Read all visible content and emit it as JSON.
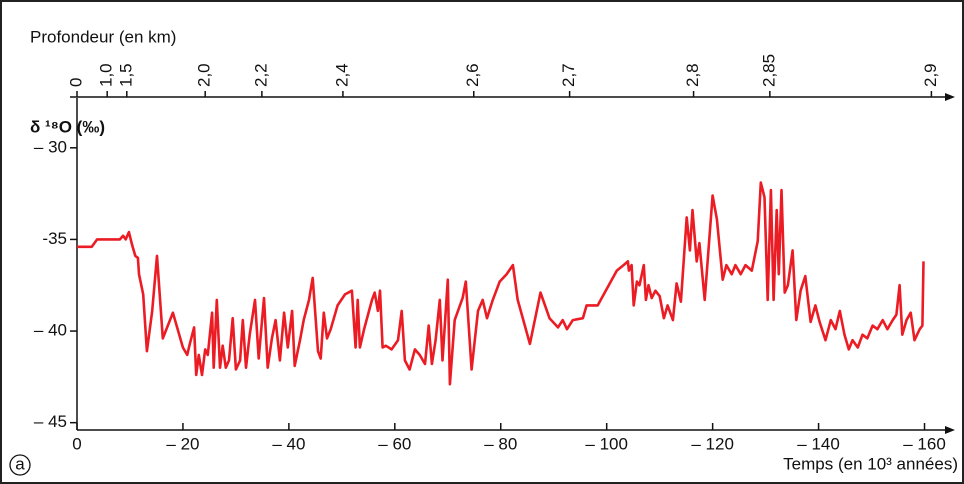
{
  "chart_data": {
    "type": "line",
    "panel_label": "a",
    "depth_axis_label": "Profondeur (en km)",
    "x2ticks": [
      0,
      {
        "value": 1.0,
        "label": "1,0"
      },
      {
        "value": 1.5,
        "label": "1,5"
      },
      {
        "value": 2.0,
        "label": "2,0"
      },
      {
        "value": 2.2,
        "label": "2,2"
      },
      {
        "value": 2.4,
        "label": "2,4"
      },
      {
        "value": 2.6,
        "label": "2,6"
      },
      {
        "value": 2.7,
        "label": "2,7"
      },
      {
        "value": 2.8,
        "label": "2,8"
      },
      {
        "value": 2.85,
        "label": "2,85"
      },
      {
        "value": 2.9,
        "label": "2,9"
      }
    ],
    "x2tick_ages": [
      0,
      -5.7,
      -9.4,
      -24.2,
      -34.9,
      -50.2,
      -74.9,
      -93.0,
      -116.4,
      -130.8,
      -161.3
    ],
    "y_label": "δ ¹⁸O (‰)",
    "x_label": "Temps (en 10³ années)",
    "xlim": [
      0,
      -165
    ],
    "ylim": [
      -45.4,
      -27.5
    ],
    "xticks": [
      0,
      {
        "value": -20,
        "label": "– 20"
      },
      {
        "value": -40,
        "label": "– 40"
      },
      {
        "value": -60,
        "label": "– 60"
      },
      {
        "value": -80,
        "label": "– 80"
      },
      {
        "value": -100,
        "label": "– 100"
      },
      {
        "value": -120,
        "label": "– 120"
      },
      {
        "value": -140,
        "label": "– 140"
      },
      {
        "value": -160,
        "label": "– 160"
      }
    ],
    "yticks": [
      {
        "value": -30,
        "label": "– 30"
      },
      {
        "value": -35,
        "label": "-35"
      },
      {
        "value": -40,
        "label": "– 40"
      },
      {
        "value": -45,
        "label": "– 45"
      }
    ],
    "grid": false,
    "x": [
      0,
      -2.8,
      -3.8,
      -8.1,
      -8.7,
      -9.2,
      -9.8,
      -10.4,
      -11,
      -11.5,
      -11.7,
      -12.5,
      -13.2,
      -14.2,
      -15.1,
      -16.2,
      -18.1,
      -20,
      -20.8,
      -21.3,
      -22.1,
      -22.5,
      -23,
      -23.6,
      -24.2,
      -24.7,
      -25.5,
      -25.8,
      -26.4,
      -27,
      -27.5,
      -28.1,
      -28.7,
      -29.4,
      -30,
      -30.8,
      -31.3,
      -31.9,
      -32.6,
      -33.6,
      -34.3,
      -35.3,
      -36,
      -36.8,
      -37.5,
      -38.3,
      -39.1,
      -39.8,
      -40.6,
      -41.1,
      -42.1,
      -42.8,
      -43.8,
      -44.5,
      -45.5,
      -46,
      -46.6,
      -47.2,
      -47.9,
      -49.2,
      -50.6,
      -51.9,
      -52.6,
      -53,
      -53.4,
      -54.2,
      -55.7,
      -56.2,
      -56.8,
      -57.2,
      -57.7,
      -58.3,
      -59.4,
      -60.6,
      -61.3,
      -61.9,
      -62.8,
      -63.8,
      -64.7,
      -65.7,
      -66.4,
      -67,
      -67.7,
      -68.5,
      -69,
      -70,
      -70.4,
      -71.3,
      -72.8,
      -73.4,
      -74.5,
      -75.7,
      -76.6,
      -77.4,
      -78.5,
      -79.8,
      -81.1,
      -82.3,
      -83.2,
      -85.5,
      -87.5,
      -89.2,
      -90.8,
      -91.7,
      -92.5,
      -93.6,
      -95.5,
      -96.2,
      -98.3,
      -101.9,
      -103.2,
      -104,
      -104.2,
      -104.7,
      -105.1,
      -105.7,
      -106.2,
      -107,
      -107.4,
      -107.9,
      -108.5,
      -109.2,
      -110,
      -110.8,
      -111.5,
      -112.5,
      -113.2,
      -114,
      -115.1,
      -115.7,
      -116.2,
      -117,
      -117.5,
      -118.5,
      -120,
      -120.8,
      -121.9,
      -122.6,
      -123.6,
      -124.3,
      -125.3,
      -126.2,
      -127.4,
      -128.5,
      -129.1,
      -129.8,
      -130.4,
      -131,
      -131.5,
      -132.1,
      -132.5,
      -133,
      -133.6,
      -134.2,
      -135.1,
      -135.8,
      -136.6,
      -137.5,
      -138.5,
      -139.4,
      -140.2,
      -141.3,
      -142.3,
      -143.2,
      -144,
      -144.9,
      -145.7,
      -146.4,
      -147.4,
      -148.3,
      -149.2,
      -150.2,
      -151.1,
      -152.1,
      -153,
      -154,
      -154.7,
      -155.3,
      -155.8,
      -156.6,
      -157.4,
      -158.1,
      -159.1,
      -159.6,
      -159.8
    ],
    "series": [
      {
        "color": "#ec1c24",
        "values": [
          -35.4,
          -35.4,
          -35.0,
          -35.0,
          -34.8,
          -35.0,
          -34.6,
          -35.3,
          -35.9,
          -36.0,
          -36.9,
          -38.0,
          -41.1,
          -38.9,
          -35.9,
          -40.4,
          -39.0,
          -40.9,
          -41.3,
          -40.7,
          -39.8,
          -42.4,
          -41.3,
          -42.4,
          -41.0,
          -41.3,
          -39.0,
          -42.0,
          -38.3,
          -42.0,
          -40.8,
          -42.0,
          -41.6,
          -39.3,
          -42.1,
          -41.6,
          -39.4,
          -42.0,
          -40.2,
          -38.3,
          -41.5,
          -38.2,
          -42.0,
          -40.4,
          -39.4,
          -41.6,
          -39.0,
          -40.9,
          -38.9,
          -41.9,
          -40.5,
          -39.4,
          -38.3,
          -37.1,
          -41.1,
          -41.5,
          -39.0,
          -40.4,
          -39.9,
          -38.6,
          -38.0,
          -37.8,
          -40.9,
          -38.3,
          -40.9,
          -39.9,
          -38.3,
          -37.9,
          -38.9,
          -37.8,
          -40.9,
          -40.8,
          -41.0,
          -40.5,
          -38.9,
          -41.6,
          -42.1,
          -41.0,
          -41.3,
          -41.8,
          -39.7,
          -41.8,
          -40.5,
          -38.3,
          -41.6,
          -37.2,
          -42.9,
          -39.4,
          -38.2,
          -37.3,
          -42.1,
          -38.9,
          -38.3,
          -39.3,
          -38.3,
          -37.3,
          -36.9,
          -36.4,
          -38.3,
          -40.7,
          -37.9,
          -39.3,
          -39.8,
          -39.4,
          -39.9,
          -39.4,
          -39.3,
          -38.6,
          -38.6,
          -36.7,
          -36.4,
          -36.2,
          -36.7,
          -36.4,
          -38.6,
          -37.3,
          -37.5,
          -36.4,
          -38.3,
          -37.5,
          -38.2,
          -37.8,
          -38.1,
          -39.3,
          -38.6,
          -39.4,
          -37.4,
          -38.4,
          -33.8,
          -35.6,
          -33.4,
          -36.2,
          -35.2,
          -38.3,
          -32.6,
          -33.9,
          -37.2,
          -36.4,
          -36.9,
          -36.4,
          -36.9,
          -36.4,
          -36.7,
          -35.1,
          -31.9,
          -32.7,
          -38.3,
          -32.3,
          -38.3,
          -33.4,
          -36.9,
          -32.3,
          -37.9,
          -37.5,
          -35.6,
          -39.4,
          -37.8,
          -37.0,
          -39.5,
          -38.6,
          -39.5,
          -40.5,
          -39.4,
          -39.9,
          -38.9,
          -40.2,
          -41.0,
          -40.5,
          -40.9,
          -40.2,
          -40.4,
          -39.7,
          -39.9,
          -39.4,
          -39.9,
          -39.4,
          -39.1,
          -37.5,
          -40.2,
          -39.4,
          -39.0,
          -40.5,
          -39.9,
          -39.7,
          -36.2
        ]
      }
    ]
  }
}
